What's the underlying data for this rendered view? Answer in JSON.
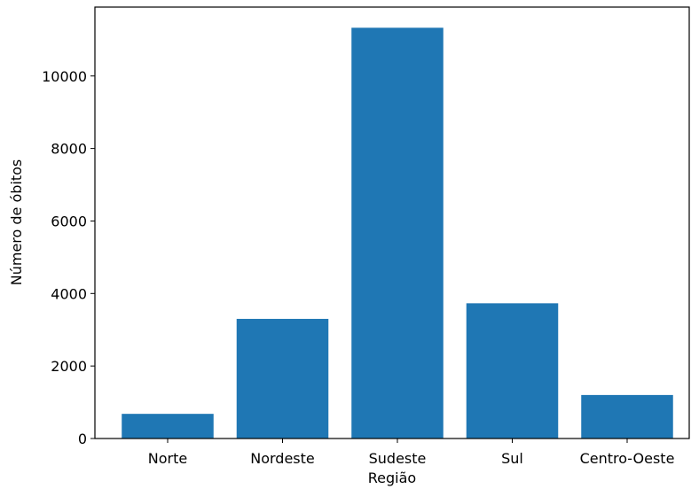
{
  "chart_data": {
    "type": "bar",
    "categories": [
      "Norte",
      "Nordeste",
      "Sudeste",
      "Sul",
      "Centro-Oeste"
    ],
    "values": [
      680,
      3300,
      11330,
      3730,
      1200
    ],
    "xlabel": "Região",
    "ylabel": "Número de óbitos",
    "ylim": [
      0,
      11900
    ],
    "yticks": [
      0,
      2000,
      4000,
      6000,
      8000,
      10000
    ],
    "bar_color": "#1f77b4",
    "grid": false
  }
}
